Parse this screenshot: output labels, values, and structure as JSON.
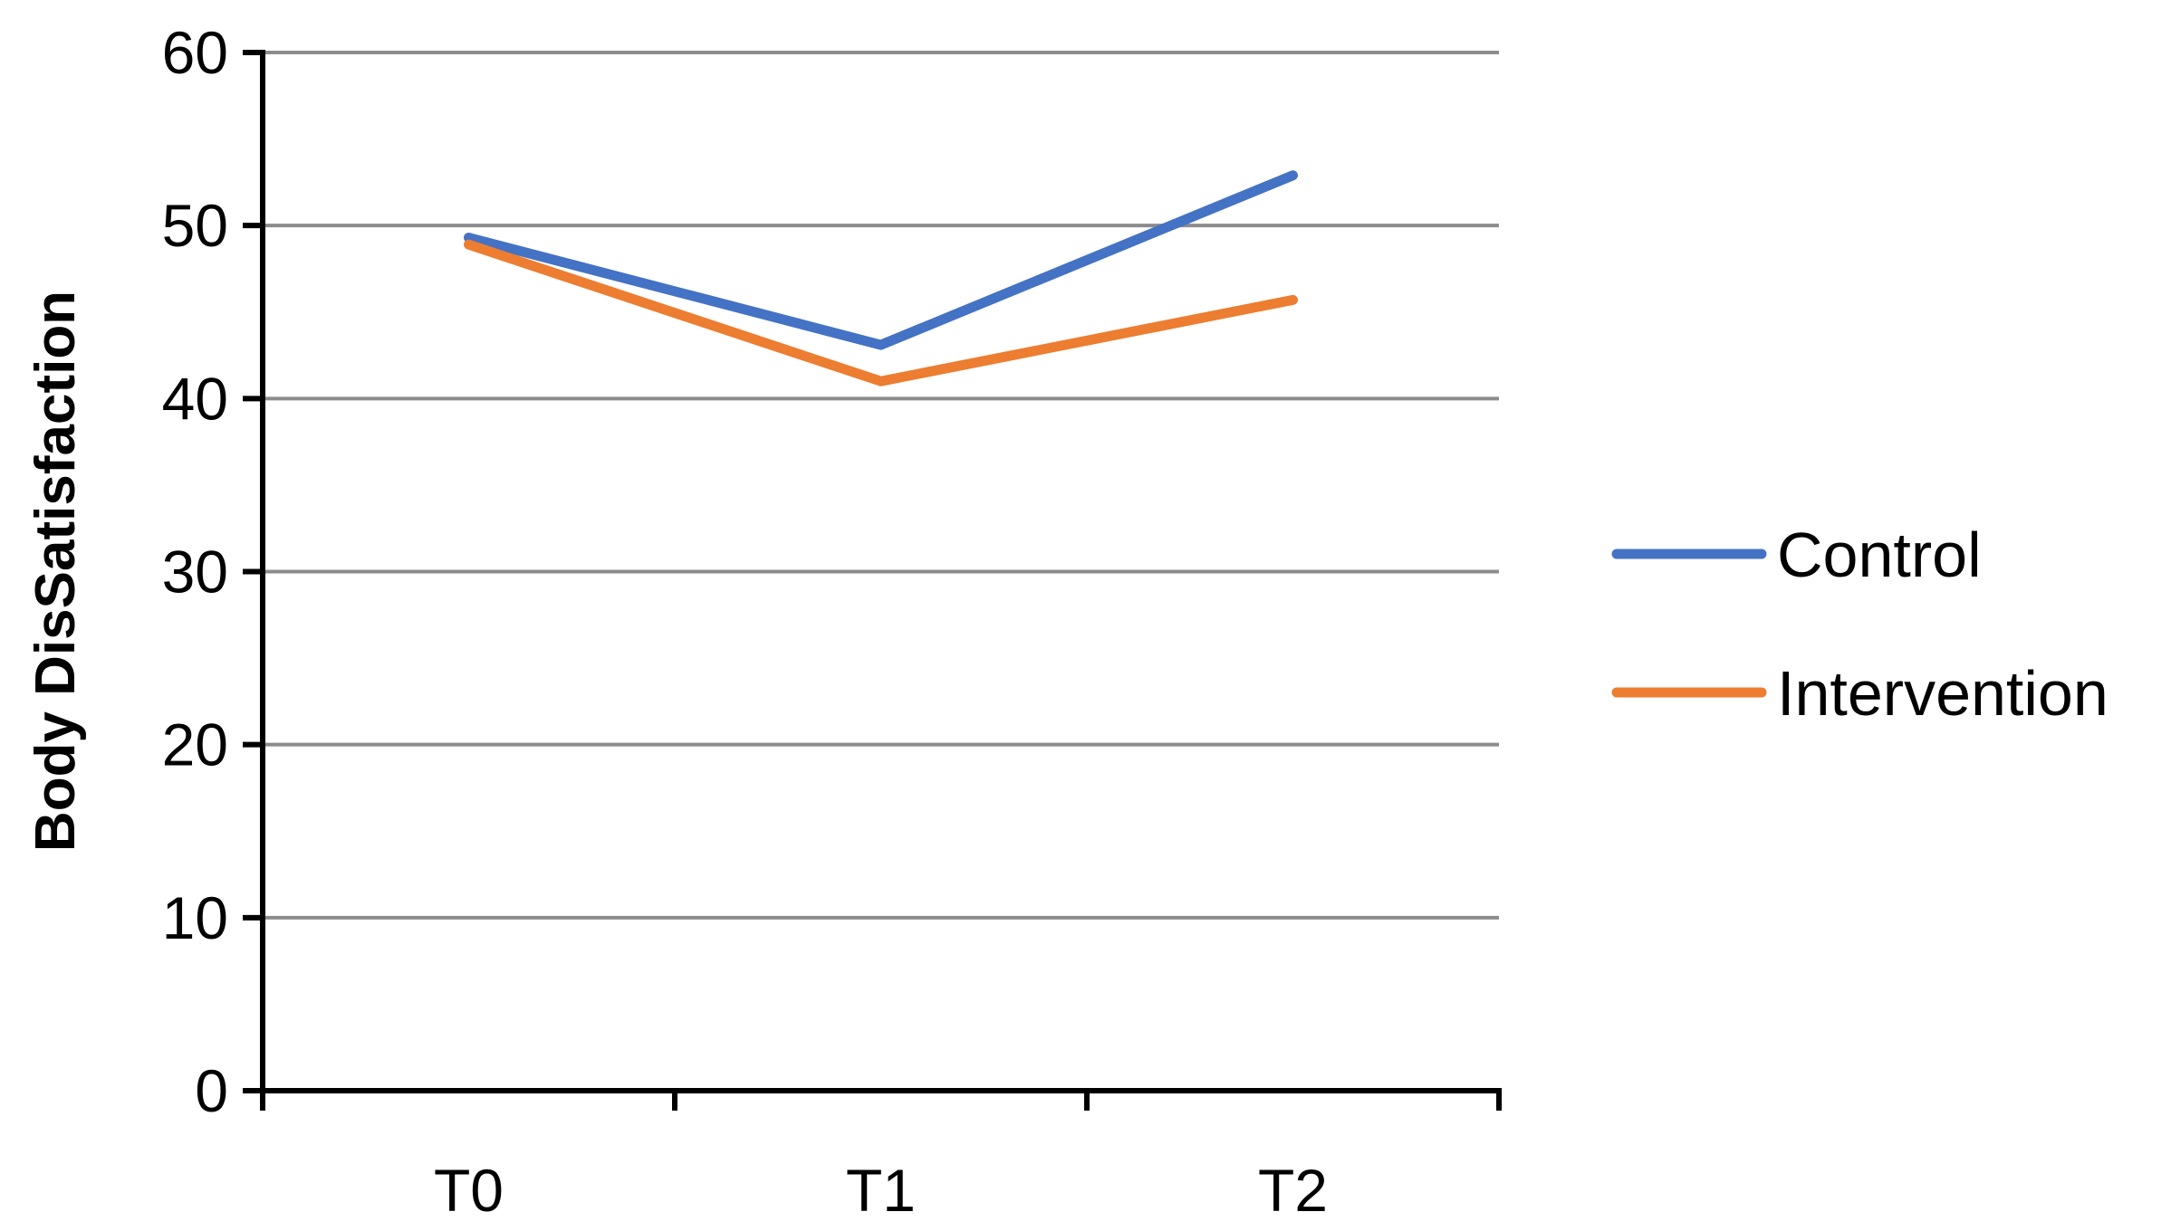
{
  "chart_data": {
    "type": "line",
    "title": "",
    "xlabel": "",
    "ylabel": "Body DisSatisfaction",
    "categories": [
      "T0",
      "T1",
      "T2"
    ],
    "ylim": [
      0,
      60
    ],
    "yticks": [
      "0",
      "10",
      "20",
      "30",
      "40",
      "50",
      "60"
    ],
    "grid": true,
    "legend_position": "right",
    "series": [
      {
        "name": "Control",
        "color": "#4472C4",
        "values": [
          49.3,
          43.1,
          52.9
        ]
      },
      {
        "name": "Intervention",
        "color": "#ED7D31",
        "values": [
          48.9,
          41.0,
          45.7
        ]
      }
    ]
  }
}
